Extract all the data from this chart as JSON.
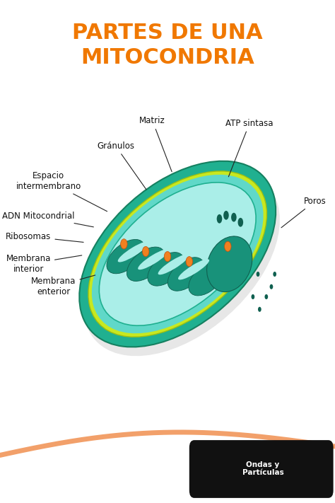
{
  "title_line1": "PARTES DE UNA",
  "title_line2": "MITOCONDRIA",
  "title_color": "#F07800",
  "title_fontsize": 22,
  "bg_color": "#FFFFFF",
  "watermark_text": "Ondas y\nPartículas",
  "watermark_bg": "#1a1a1a",
  "outer_color": "#20b090",
  "outer_edge": "#158060",
  "yellow_color": "#c8e820",
  "yellow_edge": "#a0c010",
  "inter_color": "#60d8c8",
  "inner_color": "#aaeee8",
  "inner_edge": "#20b090",
  "cristae_color": "#18927a",
  "cristae_edge": "#106050",
  "matrix_color": "#b0eee8",
  "orange_color": "#f08020",
  "orange_edge": "#c05010",
  "pore_color": "#106050",
  "label_fontsize": 8.5,
  "label_color": "#111111",
  "arrow_color": "#222222"
}
